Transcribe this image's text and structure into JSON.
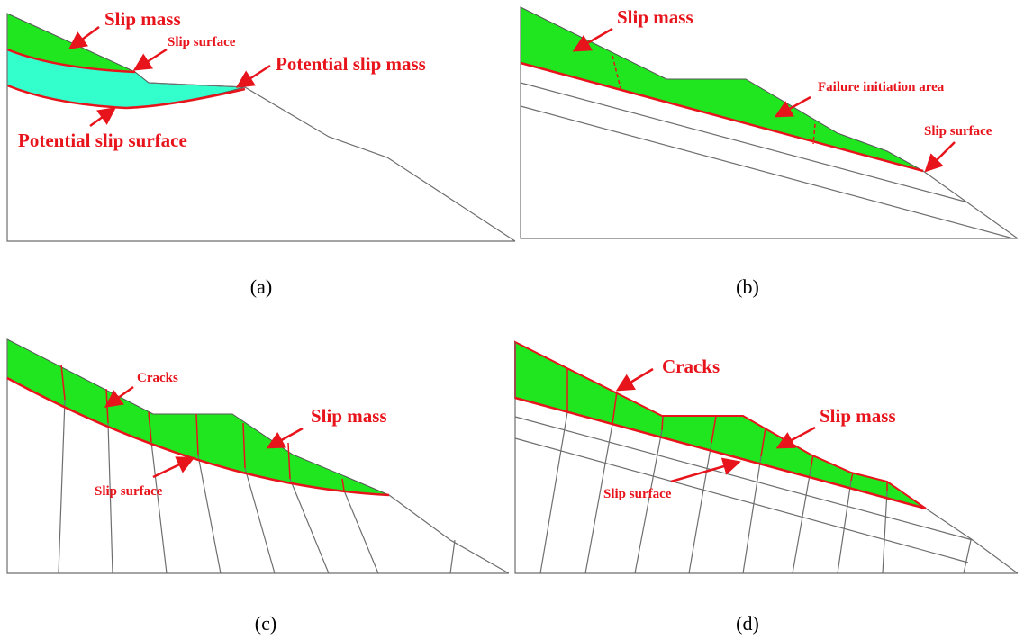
{
  "panels": [
    {
      "caption": "(a)",
      "labels": [
        "Slip mass",
        "Slip surface",
        "Potential slip mass",
        "Potential slip surface"
      ]
    },
    {
      "caption": "(b)",
      "labels": [
        "Slip mass",
        "Failure initiation area",
        "Slip surface"
      ]
    },
    {
      "caption": "(c)",
      "labels": [
        "Cracks",
        "Slip mass",
        "Slip surface"
      ]
    },
    {
      "caption": "(d)",
      "labels": [
        "Cracks",
        "Slip mass",
        "Slip surface"
      ]
    }
  ]
}
